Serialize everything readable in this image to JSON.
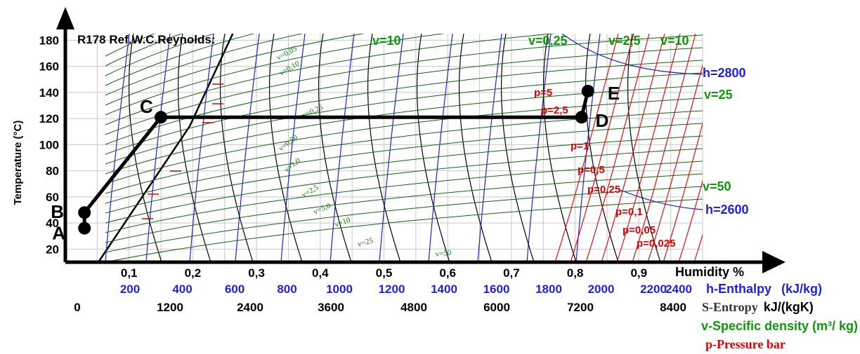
{
  "chart_data": {
    "type": "line",
    "title": "R178 Ref.W.C.Reynolds:",
    "ylabel": "Temperature (°C)",
    "xlabel": "Humidity %",
    "ylim": [
      10,
      185
    ],
    "xlim": [
      0,
      1.0
    ],
    "grid": true,
    "y_ticks": [
      "20",
      "40",
      "60",
      "80",
      "100",
      "120",
      "140",
      "160",
      "180"
    ],
    "x_ticks": [
      "0,1",
      "0,2",
      "0,3",
      "0,4",
      "0,5",
      "0,6",
      "0,7",
      "0,8",
      "0,9"
    ],
    "x_tick_values": [
      0.1,
      0.2,
      0.3,
      0.4,
      0.5,
      0.6,
      0.7,
      0.8,
      0.9
    ],
    "enthalpy_ticks": [
      "200",
      "400",
      "600",
      "800",
      "1000",
      "1200",
      "1400",
      "1600",
      "1800",
      "2000",
      "2200",
      "2400"
    ],
    "entropy_ticks": [
      "0",
      "1200",
      "2400",
      "3600",
      "4800",
      "6000",
      "7200",
      "8400"
    ],
    "legend": [
      {
        "text": "h-Enthalpy",
        "unit": "(kJ/kg)",
        "color": "#1f1fe0"
      },
      {
        "text": "S-Entropy",
        "unit": "kJ/(kgK)",
        "color": "#333333"
      },
      {
        "text": "v-Specific density (m³/ kg)",
        "color": "#0a9a0a"
      },
      {
        "text": "p-Pressure bar",
        "color": "#e00000"
      }
    ],
    "cycle_points": [
      {
        "name": "A",
        "x": 0.03,
        "y": 36
      },
      {
        "name": "B",
        "x": 0.03,
        "y": 48
      },
      {
        "name": "C",
        "x": 0.15,
        "y": 121
      },
      {
        "name": "D",
        "x": 0.81,
        "y": 121
      },
      {
        "name": "E",
        "x": 0.82,
        "y": 141
      }
    ],
    "top_volume_labels": [
      "v=10",
      "v=0,25",
      "v=2,5",
      "v=10"
    ],
    "right_labels": [
      {
        "text": "h=2800",
        "color": "#1f1fe0"
      },
      {
        "text": "v=25",
        "color": "#0a9a0a"
      },
      {
        "text": "v=50",
        "color": "#0a9a0a"
      },
      {
        "text": "h=2600",
        "color": "#1f1fe0"
      }
    ],
    "pressure_labels": [
      "p=5",
      "p=2,5",
      "p=1",
      "p=0,5",
      "p=0,25",
      "p=0,1",
      "p=0,05",
      "p=0,025"
    ],
    "inner_volume_labels": [
      "v=0,05",
      "v=0,10",
      "v=0,25",
      "v=0,50",
      "v=1,0",
      "v=2,5",
      "v=5,0",
      "v=10",
      "v=25",
      "v=50"
    ],
    "colors": {
      "saturation": "#000000",
      "enthalpy": "#1f1fe0",
      "entropy": "#000000",
      "volume": "#0a6a0a",
      "pressure": "#e00000",
      "cycle": "#000000"
    }
  }
}
